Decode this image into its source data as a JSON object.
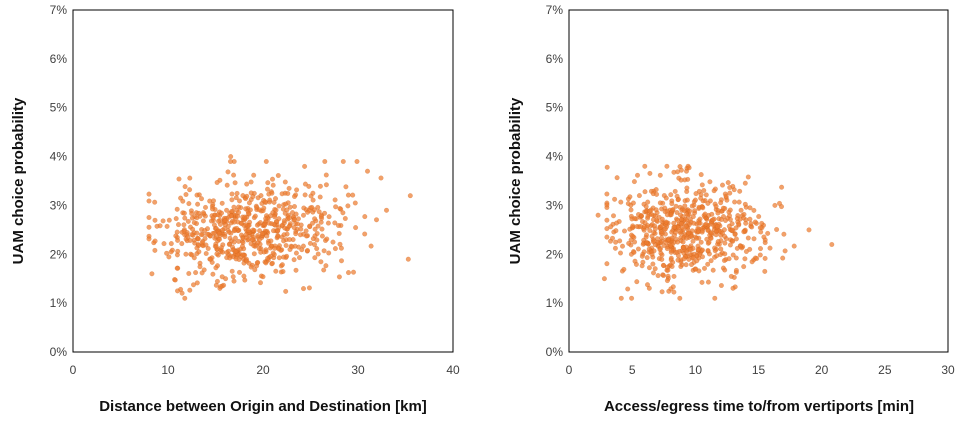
{
  "chart_data": [
    {
      "type": "scatter",
      "title": "",
      "xlabel": "Distance between Origin and Destination [km]",
      "ylabel": "UAM choice probability",
      "xlim": [
        0,
        40
      ],
      "ylim": [
        0,
        7
      ],
      "xticks": [
        0,
        10,
        20,
        30,
        40
      ],
      "yticks": [
        0,
        1,
        2,
        3,
        4,
        5,
        6,
        7
      ],
      "xtick_labels": [
        "0",
        "10",
        "20",
        "30",
        "40"
      ],
      "ytick_labels": [
        "0%",
        "1%",
        "2%",
        "3%",
        "4%",
        "5%",
        "6%",
        "7%"
      ],
      "y_unit": "%",
      "marker_color": "#ED7D31",
      "cloud": {
        "n": 650,
        "x_mean": 18.5,
        "x_sd": 4.8,
        "x_min": 8.0,
        "x_max": 34.0,
        "y_mean": 2.5,
        "y_sd": 0.5,
        "y_min": 1.1,
        "y_max": 3.9,
        "trend": 0.012,
        "seed": 11
      },
      "points": [
        [
          16.6,
          4.0
        ],
        [
          26.5,
          3.9
        ],
        [
          35.5,
          3.2
        ],
        [
          35.3,
          1.9
        ],
        [
          8.3,
          1.6
        ],
        [
          31.0,
          3.7
        ],
        [
          33.0,
          2.9
        ],
        [
          11.0,
          1.25
        ]
      ]
    },
    {
      "type": "scatter",
      "title": "",
      "xlabel": "Access/egress time to/from vertiports [min]",
      "ylabel": "UAM choice probability",
      "xlim": [
        0,
        30
      ],
      "ylim": [
        0,
        7
      ],
      "xticks": [
        0,
        5,
        10,
        15,
        20,
        25,
        30
      ],
      "yticks": [
        0,
        1,
        2,
        3,
        4,
        5,
        6,
        7
      ],
      "xtick_labels": [
        "0",
        "5",
        "10",
        "15",
        "20",
        "25",
        "30"
      ],
      "ytick_labels": [
        "0%",
        "1%",
        "2%",
        "3%",
        "4%",
        "5%",
        "6%",
        "7%"
      ],
      "y_unit": "%",
      "marker_color": "#ED7D31",
      "cloud": {
        "n": 650,
        "x_mean": 9.3,
        "x_sd": 2.9,
        "x_min": 3.0,
        "x_max": 18.0,
        "y_mean": 2.5,
        "y_sd": 0.5,
        "y_min": 1.1,
        "y_max": 3.8,
        "trend": 0.0,
        "seed": 29
      },
      "points": [
        [
          2.3,
          2.8
        ],
        [
          2.8,
          1.5
        ],
        [
          20.8,
          2.2
        ],
        [
          16.3,
          3.0
        ],
        [
          19.0,
          2.5
        ],
        [
          6.0,
          3.8
        ],
        [
          9.3,
          3.7
        ],
        [
          15.5,
          1.65
        ]
      ]
    }
  ]
}
